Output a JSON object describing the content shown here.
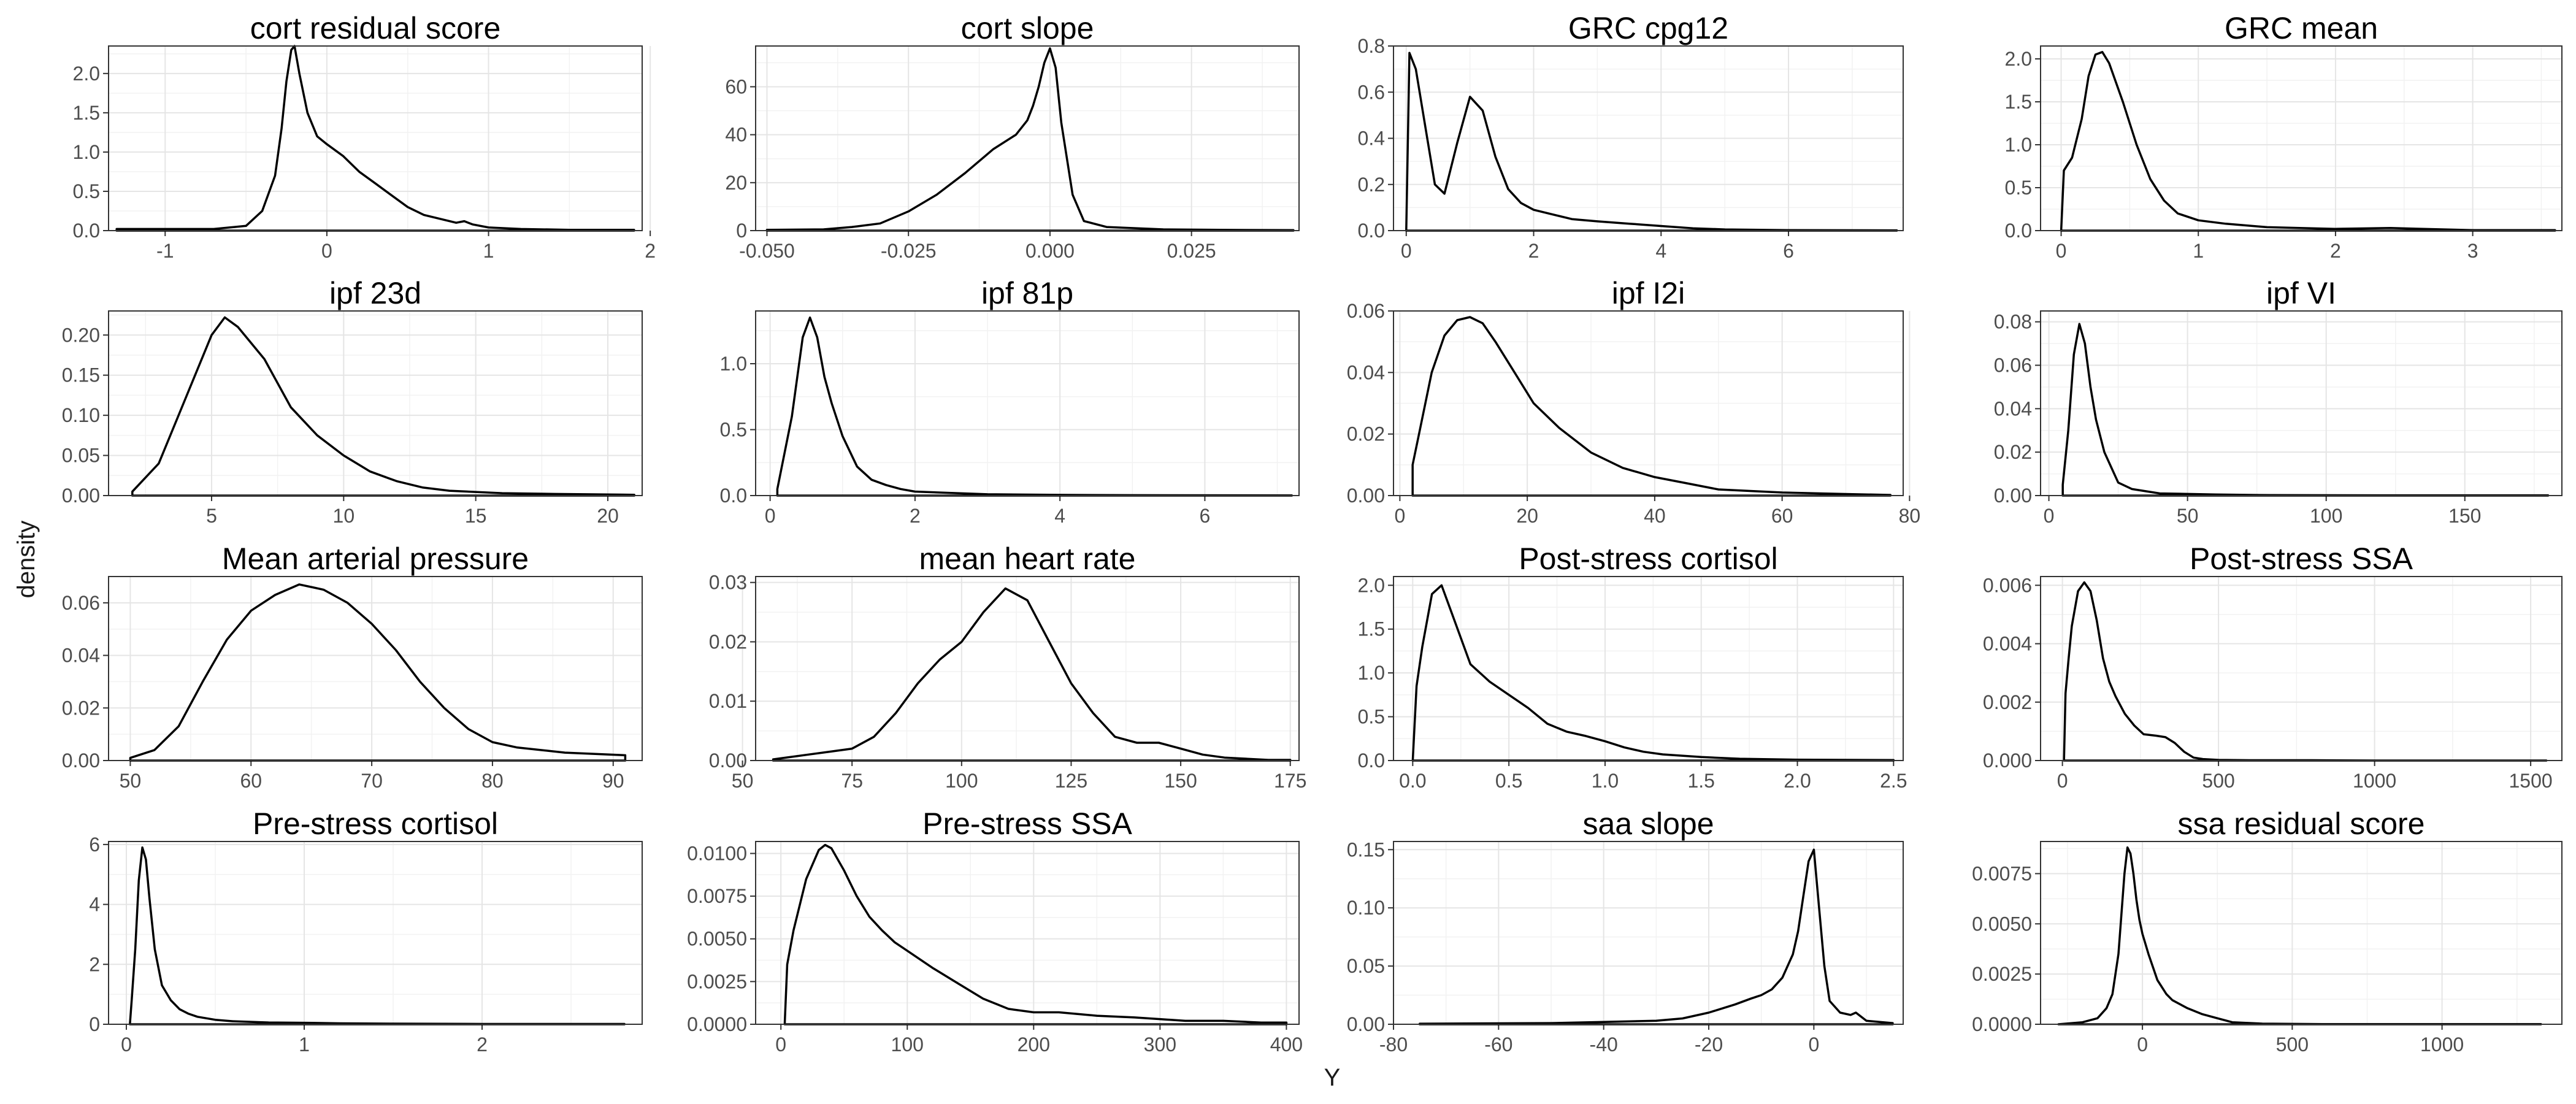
{
  "figure": {
    "xlabel": "Y",
    "ylabel": "density"
  },
  "chart_data": [
    {
      "type": "line",
      "title": "cort residual score",
      "xlim": [
        -1.35,
        1.95
      ],
      "ylim": [
        0,
        2.35
      ],
      "xticks": [
        -1,
        0,
        1,
        2
      ],
      "yticks": [
        0,
        0.5,
        1,
        1.5,
        2
      ],
      "xtick_labels": [
        "-1",
        "0",
        "1",
        "2"
      ],
      "ytick_labels": [
        "0.0",
        "0.5",
        "1.0",
        "1.5",
        "2.0"
      ],
      "x": [
        -1.3,
        -0.7,
        -0.5,
        -0.4,
        -0.32,
        -0.28,
        -0.25,
        -0.22,
        -0.2,
        -0.17,
        -0.12,
        -0.06,
        0,
        0.1,
        0.2,
        0.3,
        0.4,
        0.5,
        0.6,
        0.7,
        0.8,
        0.85,
        0.9,
        1.0,
        1.2,
        1.5,
        1.9
      ],
      "y": [
        0.02,
        0.02,
        0.06,
        0.25,
        0.7,
        1.3,
        1.9,
        2.3,
        2.35,
        2.0,
        1.5,
        1.2,
        1.1,
        0.95,
        0.75,
        0.6,
        0.45,
        0.3,
        0.2,
        0.15,
        0.1,
        0.12,
        0.08,
        0.04,
        0.02,
        0.01,
        0.01
      ]
    },
    {
      "type": "line",
      "title": "cort slope",
      "xlim": [
        -0.052,
        0.044
      ],
      "ylim": [
        0,
        77
      ],
      "xticks": [
        -0.05,
        -0.025,
        0,
        0.025
      ],
      "yticks": [
        0,
        20,
        40,
        60
      ],
      "xtick_labels": [
        "-0.050",
        "-0.025",
        "0.000",
        "0.025"
      ],
      "ytick_labels": [
        "0",
        "20",
        "40",
        "60"
      ],
      "x": [
        -0.05,
        -0.04,
        -0.035,
        -0.03,
        -0.025,
        -0.02,
        -0.015,
        -0.01,
        -0.006,
        -0.004,
        -0.003,
        -0.002,
        -0.001,
        0,
        0.001,
        0.002,
        0.004,
        0.006,
        0.01,
        0.02,
        0.03,
        0.043
      ],
      "y": [
        0.3,
        0.5,
        1.5,
        3,
        8,
        15,
        24,
        34,
        40,
        46,
        52,
        60,
        70,
        76,
        68,
        45,
        15,
        4,
        1.5,
        0.5,
        0.3,
        0.2
      ]
    },
    {
      "type": "line",
      "title": "GRC cpg12",
      "xlim": [
        -0.2,
        7.8
      ],
      "ylim": [
        0,
        0.8
      ],
      "xticks": [
        0,
        2,
        4,
        6
      ],
      "yticks": [
        0,
        0.2,
        0.4,
        0.6,
        0.8
      ],
      "xtick_labels": [
        "0",
        "2",
        "4",
        "6"
      ],
      "ytick_labels": [
        "0.0",
        "0.2",
        "0.4",
        "0.6",
        "0.8"
      ],
      "x": [
        0,
        0.05,
        0.15,
        0.3,
        0.45,
        0.6,
        0.8,
        1.0,
        1.2,
        1.4,
        1.6,
        1.8,
        2.0,
        2.3,
        2.6,
        3.0,
        3.5,
        4.0,
        4.5,
        5.0,
        6.0,
        7.7
      ],
      "y": [
        0,
        0.77,
        0.7,
        0.45,
        0.2,
        0.16,
        0.38,
        0.58,
        0.52,
        0.32,
        0.18,
        0.12,
        0.09,
        0.07,
        0.05,
        0.04,
        0.03,
        0.02,
        0.01,
        0.005,
        0.002,
        0.001
      ]
    },
    {
      "type": "line",
      "title": "GRC mean",
      "xlim": [
        -0.15,
        3.65
      ],
      "ylim": [
        0,
        2.15
      ],
      "xticks": [
        0,
        1,
        2,
        3
      ],
      "yticks": [
        0,
        0.5,
        1,
        1.5,
        2
      ],
      "xtick_labels": [
        "0",
        "1",
        "2",
        "3"
      ],
      "ytick_labels": [
        "0.0",
        "0.5",
        "1.0",
        "1.5",
        "2.0"
      ],
      "x": [
        0,
        0.02,
        0.08,
        0.15,
        0.2,
        0.25,
        0.3,
        0.35,
        0.45,
        0.55,
        0.65,
        0.75,
        0.85,
        1.0,
        1.2,
        1.5,
        2.0,
        2.4,
        3.0,
        3.6
      ],
      "y": [
        0,
        0.7,
        0.85,
        1.3,
        1.8,
        2.05,
        2.08,
        1.95,
        1.5,
        1.0,
        0.6,
        0.35,
        0.2,
        0.12,
        0.08,
        0.04,
        0.02,
        0.03,
        0.005,
        0.005
      ]
    },
    {
      "type": "line",
      "title": "ipf 23d",
      "xlim": [
        1.1,
        21.3
      ],
      "ylim": [
        0,
        0.23
      ],
      "xticks": [
        5,
        10,
        15,
        20
      ],
      "yticks": [
        0,
        0.05,
        0.1,
        0.15,
        0.2
      ],
      "xtick_labels": [
        "5",
        "10",
        "15",
        "20"
      ],
      "ytick_labels": [
        "0.00",
        "0.05",
        "0.10",
        "0.15",
        "0.20"
      ],
      "x": [
        2,
        3,
        4,
        5,
        5.5,
        6,
        7,
        8,
        9,
        10,
        11,
        12,
        13,
        14,
        16,
        18,
        21
      ],
      "y": [
        0.005,
        0.04,
        0.12,
        0.2,
        0.222,
        0.21,
        0.17,
        0.11,
        0.075,
        0.05,
        0.03,
        0.018,
        0.01,
        0.006,
        0.003,
        0.002,
        0.001
      ]
    },
    {
      "type": "line",
      "title": "ipf 81p",
      "xlim": [
        -0.2,
        7.3
      ],
      "ylim": [
        0,
        1.4
      ],
      "xticks": [
        0,
        2,
        4,
        6
      ],
      "yticks": [
        0,
        0.5,
        1
      ],
      "xtick_labels": [
        "0",
        "2",
        "4",
        "6"
      ],
      "ytick_labels": [
        "0.0",
        "0.5",
        "1.0"
      ],
      "x": [
        0.1,
        0.3,
        0.45,
        0.55,
        0.65,
        0.75,
        0.85,
        1.0,
        1.2,
        1.4,
        1.6,
        1.8,
        2.0,
        2.5,
        3.0,
        4.0,
        5.0,
        7.2
      ],
      "y": [
        0.05,
        0.6,
        1.2,
        1.35,
        1.2,
        0.9,
        0.7,
        0.45,
        0.22,
        0.12,
        0.08,
        0.05,
        0.03,
        0.02,
        0.01,
        0.005,
        0.003,
        0.001
      ]
    },
    {
      "type": "line",
      "title": "ipf I2i",
      "xlim": [
        -1,
        79
      ],
      "ylim": [
        0,
        0.06
      ],
      "xticks": [
        0,
        20,
        40,
        60,
        80
      ],
      "yticks": [
        0,
        0.02,
        0.04,
        0.06
      ],
      "xtick_labels": [
        "0",
        "20",
        "40",
        "60",
        "80"
      ],
      "ytick_labels": [
        "0.00",
        "0.02",
        "0.04",
        "0.06"
      ],
      "x": [
        2,
        3,
        5,
        7,
        9,
        11,
        13,
        15,
        18,
        21,
        25,
        30,
        35,
        40,
        45,
        50,
        60,
        70,
        77
      ],
      "y": [
        0.01,
        0.02,
        0.04,
        0.052,
        0.057,
        0.058,
        0.056,
        0.05,
        0.04,
        0.03,
        0.022,
        0.014,
        0.009,
        0.006,
        0.004,
        0.002,
        0.001,
        0.0005,
        0.0002
      ]
    },
    {
      "type": "line",
      "title": "ipf VI",
      "xlim": [
        -3,
        185
      ],
      "ylim": [
        0,
        0.085
      ],
      "xticks": [
        0,
        50,
        100,
        150
      ],
      "yticks": [
        0,
        0.02,
        0.04,
        0.06,
        0.08
      ],
      "xtick_labels": [
        "0",
        "50",
        "100",
        "150"
      ],
      "ytick_labels": [
        "0.00",
        "0.02",
        "0.04",
        "0.06",
        "0.08"
      ],
      "x": [
        5,
        7,
        9,
        11,
        13,
        15,
        17,
        20,
        25,
        30,
        40,
        60,
        80,
        120,
        180
      ],
      "y": [
        0.005,
        0.03,
        0.065,
        0.079,
        0.07,
        0.05,
        0.035,
        0.02,
        0.006,
        0.003,
        0.001,
        0.0005,
        0.0002,
        0.0001,
        0.0001
      ]
    },
    {
      "type": "line",
      "title": "Mean arterial pressure",
      "xlim": [
        48.2,
        92.4
      ],
      "ylim": [
        0,
        0.07
      ],
      "xticks": [
        50,
        60,
        70,
        80,
        90
      ],
      "yticks": [
        0,
        0.02,
        0.04,
        0.06
      ],
      "xtick_labels": [
        "50",
        "60",
        "70",
        "80",
        "90"
      ],
      "ytick_labels": [
        "0.00",
        "0.02",
        "0.04",
        "0.06"
      ],
      "x": [
        50,
        52,
        54,
        56,
        58,
        60,
        62,
        64,
        66,
        68,
        70,
        72,
        74,
        76,
        78,
        80,
        82,
        86,
        91
      ],
      "y": [
        0.001,
        0.004,
        0.013,
        0.03,
        0.046,
        0.057,
        0.063,
        0.067,
        0.065,
        0.06,
        0.052,
        0.042,
        0.03,
        0.02,
        0.012,
        0.007,
        0.005,
        0.003,
        0.002
      ]
    },
    {
      "type": "line",
      "title": "mean heart rate",
      "xlim": [
        53,
        177
      ],
      "ylim": [
        0,
        0.031
      ],
      "xticks": [
        50,
        75,
        100,
        125,
        150,
        175
      ],
      "yticks": [
        0,
        0.01,
        0.02,
        0.03
      ],
      "xtick_labels": [
        "50",
        "75",
        "100",
        "125",
        "150",
        "175"
      ],
      "ytick_labels": [
        "0.00",
        "0.01",
        "0.02",
        "0.03"
      ],
      "x": [
        57,
        65,
        70,
        75,
        80,
        85,
        90,
        95,
        100,
        105,
        110,
        115,
        120,
        125,
        130,
        135,
        140,
        145,
        150,
        155,
        160,
        170,
        175
      ],
      "y": [
        0.0002,
        0.001,
        0.0015,
        0.002,
        0.004,
        0.008,
        0.013,
        0.017,
        0.02,
        0.025,
        0.029,
        0.027,
        0.02,
        0.013,
        0.008,
        0.004,
        0.003,
        0.003,
        0.002,
        0.001,
        0.0005,
        0.0001,
        0.0001
      ]
    },
    {
      "type": "line",
      "title": "Post-stress cortisol",
      "xlim": [
        -0.1,
        2.55
      ],
      "ylim": [
        0,
        2.1
      ],
      "xticks": [
        0,
        0.5,
        1,
        1.5,
        2,
        2.5
      ],
      "yticks": [
        0,
        0.5,
        1,
        1.5,
        2
      ],
      "xtick_labels": [
        "0.0",
        "0.5",
        "1.0",
        "1.5",
        "2.0",
        "2.5"
      ],
      "ytick_labels": [
        "0.0",
        "0.5",
        "1.0",
        "1.5",
        "2.0"
      ],
      "x": [
        0,
        0.02,
        0.05,
        0.1,
        0.15,
        0.2,
        0.3,
        0.4,
        0.5,
        0.6,
        0.7,
        0.8,
        0.9,
        1.0,
        1.1,
        1.2,
        1.3,
        1.5,
        1.7,
        2.0,
        2.5
      ],
      "y": [
        0,
        0.85,
        1.3,
        1.9,
        2.0,
        1.7,
        1.1,
        0.9,
        0.75,
        0.6,
        0.42,
        0.33,
        0.28,
        0.22,
        0.15,
        0.1,
        0.07,
        0.04,
        0.02,
        0.01,
        0.005
      ]
    },
    {
      "type": "line",
      "title": "Post-stress SSA",
      "xlim": [
        -70,
        1600
      ],
      "ylim": [
        0,
        0.0063
      ],
      "xticks": [
        0,
        500,
        1000,
        1500
      ],
      "yticks": [
        0,
        0.002,
        0.004,
        0.006
      ],
      "xtick_labels": [
        "0",
        "500",
        "1000",
        "1500"
      ],
      "ytick_labels": [
        "0.000",
        "0.002",
        "0.004",
        "0.006"
      ],
      "x": [
        5,
        10,
        20,
        30,
        50,
        70,
        90,
        110,
        130,
        150,
        170,
        200,
        230,
        260,
        300,
        330,
        360,
        390,
        420,
        450,
        500,
        600,
        800,
        1000,
        1550
      ],
      "y": [
        0,
        0.0023,
        0.0035,
        0.0046,
        0.0058,
        0.0061,
        0.0058,
        0.0048,
        0.0035,
        0.0027,
        0.0022,
        0.0016,
        0.0012,
        0.0009,
        0.00085,
        0.0008,
        0.0006,
        0.0003,
        0.0001,
        5e-05,
        2e-05,
        1e-05,
        1e-05,
        0,
        0
      ]
    },
    {
      "type": "line",
      "title": "Pre-stress cortisol",
      "xlim": [
        -0.1,
        2.9
      ],
      "ylim": [
        0,
        6.1
      ],
      "xticks": [
        0,
        1,
        2
      ],
      "yticks": [
        0,
        2,
        4,
        6
      ],
      "xtick_labels": [
        "0",
        "1",
        "2"
      ],
      "ytick_labels": [
        "0",
        "2",
        "4",
        "6"
      ],
      "x": [
        0.02,
        0.03,
        0.05,
        0.07,
        0.09,
        0.11,
        0.13,
        0.16,
        0.2,
        0.25,
        0.3,
        0.35,
        0.4,
        0.5,
        0.6,
        0.8,
        1.0,
        1.2,
        1.5,
        2.0,
        2.8
      ],
      "y": [
        0,
        0.8,
        2.5,
        4.8,
        5.9,
        5.5,
        4.2,
        2.5,
        1.3,
        0.8,
        0.5,
        0.35,
        0.25,
        0.15,
        0.1,
        0.06,
        0.05,
        0.03,
        0.02,
        0.01,
        0.01
      ]
    },
    {
      "type": "line",
      "title": "Pre-stress SSA",
      "xlim": [
        -20,
        410
      ],
      "ylim": [
        0,
        0.0107
      ],
      "xticks": [
        0,
        100,
        200,
        300,
        400
      ],
      "yticks": [
        0,
        0.0025,
        0.005,
        0.0075,
        0.01
      ],
      "xtick_labels": [
        "0",
        "100",
        "200",
        "300",
        "400"
      ],
      "ytick_labels": [
        "0.0000",
        "0.0025",
        "0.0050",
        "0.0075",
        "0.0100"
      ],
      "x": [
        3,
        5,
        10,
        20,
        30,
        35,
        40,
        50,
        60,
        70,
        80,
        90,
        100,
        120,
        140,
        160,
        180,
        200,
        220,
        250,
        280,
        300,
        320,
        350,
        380,
        400
      ],
      "y": [
        0,
        0.0035,
        0.0055,
        0.0085,
        0.0102,
        0.0105,
        0.0103,
        0.009,
        0.0075,
        0.0063,
        0.0055,
        0.0048,
        0.0043,
        0.0033,
        0.0024,
        0.0015,
        0.0009,
        0.0007,
        0.0007,
        0.0005,
        0.0004,
        0.0003,
        0.0002,
        0.0002,
        0.0001,
        0.0001
      ]
    },
    {
      "type": "line",
      "title": "saa slope",
      "xlim": [
        -80,
        17
      ],
      "ylim": [
        0,
        0.157
      ],
      "xticks": [
        -80,
        -60,
        -40,
        -20,
        0
      ],
      "yticks": [
        0,
        0.05,
        0.1,
        0.15
      ],
      "xtick_labels": [
        "-80",
        "-60",
        "-40",
        "-20",
        "0"
      ],
      "ytick_labels": [
        "0.00",
        "0.05",
        "0.10",
        "0.15"
      ],
      "x": [
        -75,
        -50,
        -40,
        -30,
        -25,
        -20,
        -15,
        -12,
        -10,
        -8,
        -6,
        -4,
        -3,
        -2,
        -1,
        0,
        1,
        2,
        3,
        5,
        7,
        8,
        10,
        15
      ],
      "y": [
        0.0005,
        0.001,
        0.002,
        0.003,
        0.005,
        0.01,
        0.017,
        0.022,
        0.025,
        0.03,
        0.04,
        0.06,
        0.08,
        0.11,
        0.14,
        0.15,
        0.1,
        0.05,
        0.02,
        0.01,
        0.008,
        0.01,
        0.003,
        0.001
      ]
    },
    {
      "type": "line",
      "title": "ssa residual score",
      "xlim": [
        -340,
        1400
      ],
      "ylim": [
        0,
        0.0091
      ],
      "xticks": [
        0,
        500,
        1000
      ],
      "yticks": [
        0,
        0.0025,
        0.005,
        0.0075
      ],
      "xtick_labels": [
        "0",
        "500",
        "1000"
      ],
      "ytick_labels": [
        "0.0000",
        "0.0025",
        "0.0050",
        "0.0075"
      ],
      "x": [
        -280,
        -200,
        -150,
        -120,
        -100,
        -80,
        -70,
        -60,
        -50,
        -40,
        -30,
        -20,
        -10,
        0,
        20,
        50,
        80,
        100,
        150,
        200,
        250,
        300,
        400,
        600,
        1000,
        1330
      ],
      "y": [
        0,
        0.0001,
        0.0003,
        0.0008,
        0.0015,
        0.0035,
        0.0055,
        0.0075,
        0.0088,
        0.0085,
        0.0075,
        0.0062,
        0.0052,
        0.0045,
        0.0035,
        0.0022,
        0.0015,
        0.0012,
        0.0008,
        0.0005,
        0.0003,
        0.0001,
        3e-05,
        1e-05,
        5e-06,
        5e-06
      ]
    }
  ]
}
